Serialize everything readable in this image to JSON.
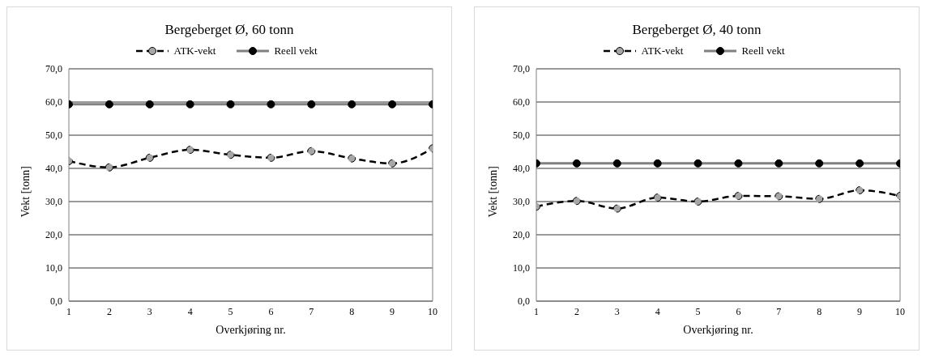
{
  "chart_data": [
    {
      "type": "line",
      "title": "Bergeberget Ø, 60 tonn",
      "xlabel": "Overkjøring nr.",
      "ylabel": "Vekt [tonn]",
      "x": [
        1,
        2,
        3,
        4,
        5,
        6,
        7,
        8,
        9,
        10
      ],
      "xlim": [
        1,
        10
      ],
      "xticks": [
        1,
        2,
        3,
        4,
        5,
        6,
        7,
        8,
        9,
        10
      ],
      "ylim": [
        0,
        70
      ],
      "yticks": [
        {
          "value": 0,
          "label": "0,0"
        },
        {
          "value": 10,
          "label": "10,0"
        },
        {
          "value": 20,
          "label": "20,0"
        },
        {
          "value": 30,
          "label": "30,0"
        },
        {
          "value": 40,
          "label": "40,0"
        },
        {
          "value": 50,
          "label": "50,0"
        },
        {
          "value": 60,
          "label": "60,0"
        },
        {
          "value": 70,
          "label": "70,0"
        }
      ],
      "grid": "y",
      "legend": "top",
      "marker": "circle",
      "series": [
        {
          "name": "ATK-vekt",
          "color": "#000000",
          "line_style": "dashed",
          "values": [
            42.2,
            40.3,
            43.2,
            45.6,
            44.1,
            43.2,
            45.2,
            43.0,
            41.5,
            46.0
          ]
        },
        {
          "name": "Reell vekt",
          "color": "#808080",
          "line_style": "solid",
          "values": [
            59.3,
            59.3,
            59.3,
            59.3,
            59.3,
            59.3,
            59.3,
            59.3,
            59.3,
            59.3
          ]
        }
      ]
    },
    {
      "type": "line",
      "title": "Bergeberget Ø, 40 tonn",
      "xlabel": "Overkjøring nr.",
      "ylabel": "Vekt [tonn]",
      "x": [
        1,
        2,
        3,
        4,
        5,
        6,
        7,
        8,
        9,
        10
      ],
      "xlim": [
        1,
        10
      ],
      "xticks": [
        1,
        2,
        3,
        4,
        5,
        6,
        7,
        8,
        9,
        10
      ],
      "ylim": [
        0,
        70
      ],
      "yticks": [
        {
          "value": 0,
          "label": "0,0"
        },
        {
          "value": 10,
          "label": "10,0"
        },
        {
          "value": 20,
          "label": "20,0"
        },
        {
          "value": 30,
          "label": "30,0"
        },
        {
          "value": 40,
          "label": "40,0"
        },
        {
          "value": 50,
          "label": "50,0"
        },
        {
          "value": 60,
          "label": "60,0"
        },
        {
          "value": 70,
          "label": "70,0"
        }
      ],
      "grid": "y",
      "legend": "top",
      "marker": "circle",
      "series": [
        {
          "name": "ATK-vekt",
          "color": "#000000",
          "line_style": "dashed",
          "values": [
            28.5,
            30.2,
            27.9,
            31.2,
            30.0,
            31.7,
            31.6,
            30.8,
            33.4,
            31.7
          ]
        },
        {
          "name": "Reell vekt",
          "color": "#808080",
          "line_style": "solid",
          "values": [
            41.5,
            41.5,
            41.5,
            41.5,
            41.5,
            41.5,
            41.5,
            41.5,
            41.5,
            41.5
          ]
        }
      ]
    }
  ]
}
